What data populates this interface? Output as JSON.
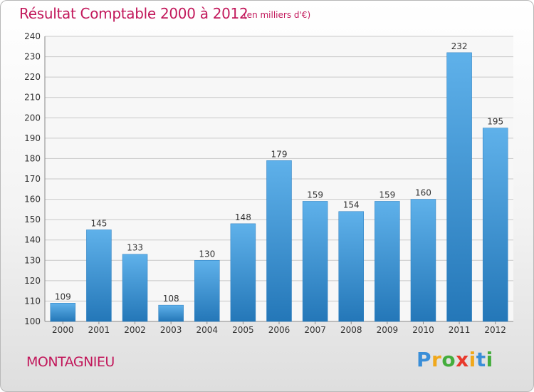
{
  "header": {
    "title": "Résultat Comptable 2000 à 2012",
    "subtitle": "(en milliers d'€)"
  },
  "footer": {
    "town": "MONTAGNIEU",
    "logo": "Proxiti"
  },
  "colors": {
    "accent": "#c2185b",
    "bar_light": "#5fb1ea",
    "bar_dark": "#2477b8"
  },
  "chart_data": {
    "type": "bar",
    "title": "Résultat Comptable 2000 à 2012",
    "subtitle": "(en milliers d'€)",
    "categories": [
      "2000",
      "2001",
      "2002",
      "2003",
      "2004",
      "2005",
      "2006",
      "2007",
      "2008",
      "2009",
      "2010",
      "2011",
      "2012"
    ],
    "values": [
      109,
      145,
      133,
      108,
      130,
      148,
      179,
      159,
      154,
      159,
      160,
      232,
      195
    ],
    "xlabel": "",
    "ylabel": "",
    "ylim": [
      100,
      240
    ],
    "yticks": [
      100,
      110,
      120,
      130,
      140,
      150,
      160,
      170,
      180,
      190,
      200,
      210,
      220,
      230,
      240
    ],
    "grid": true,
    "legend": "none"
  }
}
